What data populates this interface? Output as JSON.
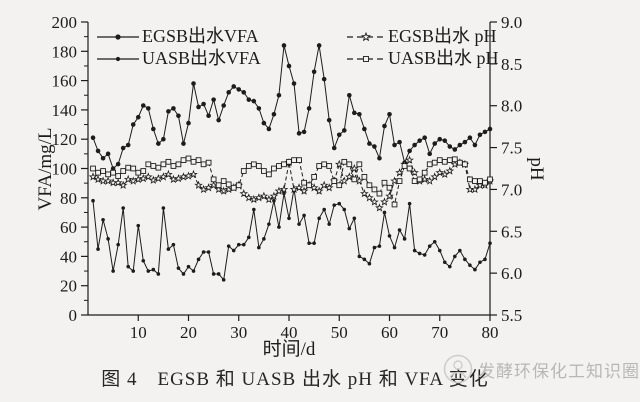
{
  "figure": {
    "caption": "图 4　EGSB 和 UASB 出水 pH 和 VFA 变化",
    "watermark_text": "发酵环保化工知识圈"
  },
  "chart_data": {
    "type": "line",
    "title": "",
    "xlabel": "时间/d",
    "ylabel_left": "VFA/mg/L",
    "ylabel_right": "pH",
    "x_range": [
      0,
      80
    ],
    "y_left_range": [
      0,
      200
    ],
    "y_right_range": [
      5.5,
      9.0
    ],
    "x_ticks": [
      "10",
      "20",
      "30",
      "40",
      "50",
      "60",
      "70",
      "80"
    ],
    "x_tick_values": [
      10,
      20,
      30,
      40,
      50,
      60,
      70,
      80
    ],
    "y_left_ticks": [
      "0",
      "20",
      "40",
      "60",
      "80",
      "100",
      "120",
      "140",
      "160",
      "180",
      "200"
    ],
    "y_left_tick_values": [
      0,
      20,
      40,
      60,
      80,
      100,
      120,
      140,
      160,
      180,
      200
    ],
    "y_right_ticks": [
      "5.5",
      "6.0",
      "6.5",
      "7.0",
      "7.5",
      "8.0",
      "8.5",
      "9.0"
    ],
    "y_right_tick_values": [
      5.5,
      6.0,
      6.5,
      7.0,
      7.5,
      8.0,
      8.5,
      9.0
    ],
    "grid": false,
    "legend_left": [
      {
        "label": "EGSB出水VFA",
        "marker": "filled-circle",
        "line": "solid"
      },
      {
        "label": "UASB出水VFA",
        "marker": "filled-circle-small",
        "line": "solid"
      }
    ],
    "legend_right": [
      {
        "label": "EGSB出水 pH",
        "marker": "open-star",
        "line": "dashed"
      },
      {
        "label": "UASB出水 pH",
        "marker": "open-square",
        "line": "dashed"
      }
    ],
    "x_start": 1,
    "x_step": 1,
    "series": [
      {
        "name": "EGSB出水VFA",
        "axis": "left",
        "marker": "filled-circle",
        "line": "solid",
        "values": [
          121,
          112,
          107,
          110,
          100,
          103,
          114,
          116,
          130,
          135,
          143,
          141,
          127,
          117,
          120,
          139,
          141,
          136,
          117,
          131,
          158,
          142,
          144,
          136,
          147,
          133,
          143,
          152,
          156,
          154,
          152,
          147,
          146,
          141,
          131,
          127,
          137,
          150,
          184,
          170,
          158,
          124,
          125,
          141,
          166,
          184,
          161,
          133,
          114,
          123,
          126,
          150,
          138,
          137,
          127,
          117,
          115,
          107,
          129,
          137,
          116,
          118,
          104,
          112,
          116,
          119,
          121,
          110,
          117,
          120,
          119,
          115,
          113,
          116,
          118,
          121,
          116,
          123,
          125,
          127
        ]
      },
      {
        "name": "UASB出水VFA",
        "axis": "left",
        "marker": "filled-circle-small",
        "line": "solid",
        "values": [
          78,
          45,
          65,
          52,
          30,
          48,
          73,
          33,
          30,
          61,
          37,
          30,
          31,
          28,
          73,
          45,
          48,
          32,
          28,
          33,
          30,
          38,
          43,
          43,
          28,
          28,
          24,
          47,
          44,
          48,
          48,
          53,
          72,
          46,
          52,
          62,
          78,
          60,
          83,
          66,
          86,
          62,
          68,
          49,
          49,
          66,
          72,
          62,
          75,
          76,
          72,
          59,
          66,
          40,
          38,
          35,
          46,
          47,
          70,
          54,
          46,
          58,
          52,
          76,
          44,
          42,
          41,
          47,
          50,
          44,
          36,
          33,
          40,
          44,
          38,
          34,
          31,
          36,
          38,
          49
        ]
      },
      {
        "name": "EGSB出水 pH",
        "axis": "right",
        "marker": "open-star",
        "line": "dashed",
        "values": [
          7.15,
          7.12,
          7.1,
          7.1,
          7.08,
          7.08,
          7.05,
          7.12,
          7.1,
          7.12,
          7.13,
          7.15,
          7.11,
          7.13,
          7.15,
          7.18,
          7.12,
          7.13,
          7.15,
          7.16,
          7.18,
          7.05,
          7.0,
          7.02,
          7.05,
          7.0,
          6.98,
          7.0,
          7.02,
          7.05,
          6.95,
          6.9,
          6.88,
          6.9,
          6.92,
          6.88,
          6.92,
          6.98,
          7.0,
          7.32,
          7.0,
          7.02,
          6.98,
          7.05,
          7.02,
          6.98,
          7.05,
          7.02,
          7.1,
          7.3,
          7.1,
          7.15,
          7.25,
          7.1,
          6.95,
          6.9,
          6.85,
          6.78,
          6.85,
          6.92,
          7.1,
          7.2,
          7.3,
          7.35,
          7.2,
          7.1,
          7.12,
          7.1,
          7.15,
          7.2,
          7.18,
          7.22,
          7.3,
          7.32,
          7.3,
          7.0,
          7.0,
          7.05,
          7.05,
          7.1
        ]
      },
      {
        "name": "UASB出水 pH",
        "axis": "right",
        "marker": "open-square",
        "line": "dashed",
        "values": [
          7.25,
          7.2,
          7.22,
          7.18,
          7.2,
          7.16,
          7.22,
          7.26,
          7.25,
          7.2,
          7.22,
          7.3,
          7.28,
          7.26,
          7.3,
          7.33,
          7.28,
          7.3,
          7.35,
          7.37,
          7.33,
          7.35,
          7.3,
          7.32,
          7.12,
          7.05,
          7.1,
          7.06,
          7.02,
          7.05,
          7.22,
          7.28,
          7.3,
          7.28,
          7.22,
          7.18,
          7.25,
          7.28,
          7.3,
          7.33,
          7.35,
          7.35,
          7.08,
          7.05,
          7.15,
          7.28,
          7.3,
          7.28,
          7.1,
          7.05,
          7.33,
          7.3,
          7.12,
          7.3,
          7.15,
          7.05,
          7.0,
          6.95,
          7.08,
          7.02,
          6.82,
          7.1,
          7.28,
          7.25,
          7.1,
          7.12,
          7.2,
          7.3,
          7.32,
          7.35,
          7.33,
          7.35,
          7.36,
          7.32,
          7.3,
          7.12,
          7.1,
          7.1,
          7.08,
          7.12
        ]
      }
    ]
  }
}
